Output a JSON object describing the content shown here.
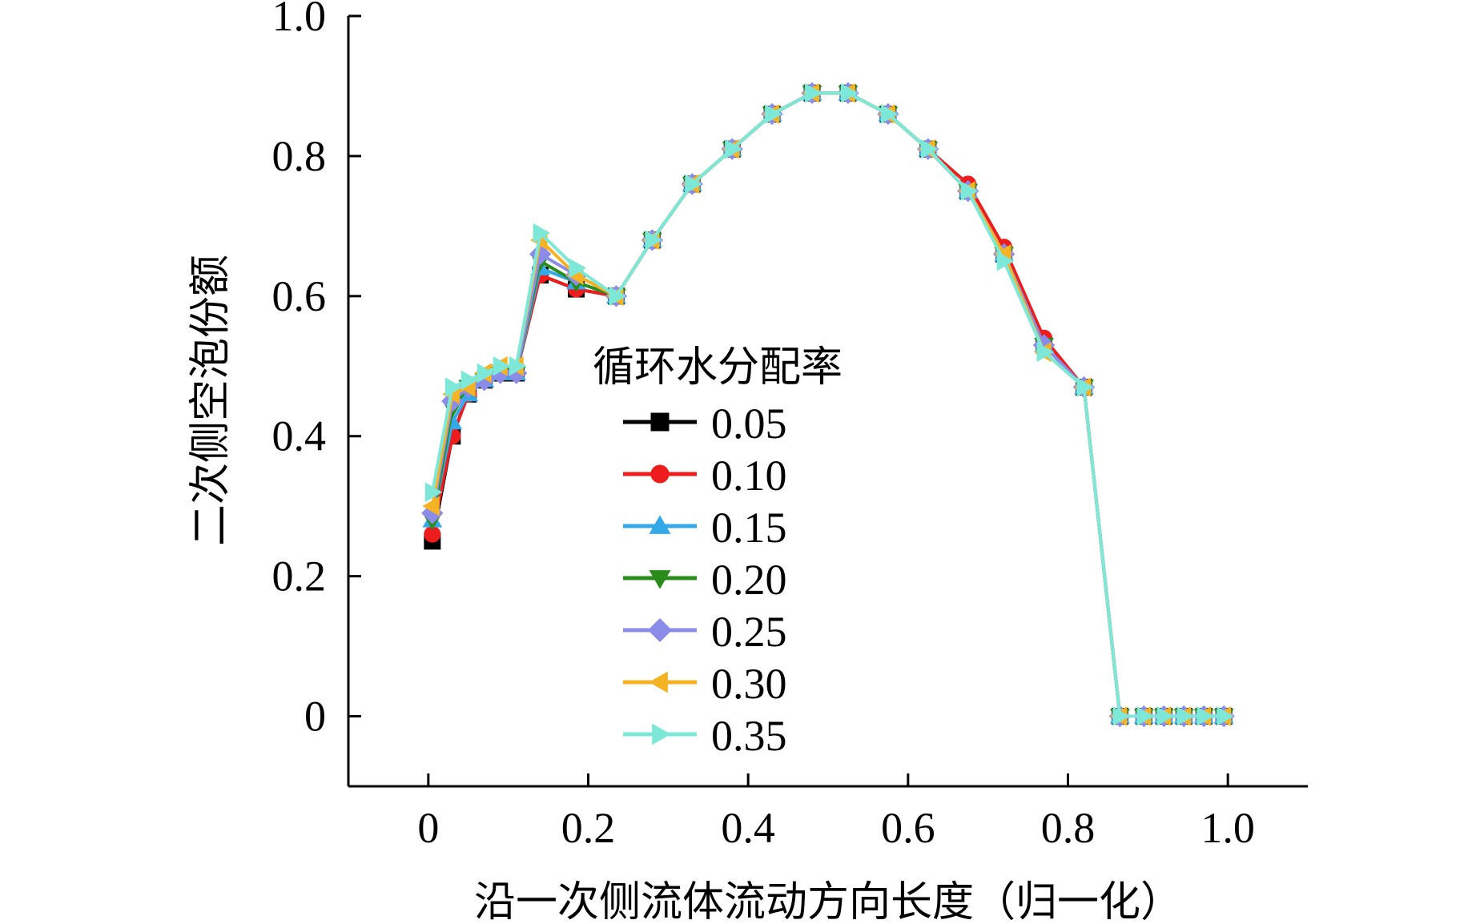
{
  "chart_data": {
    "type": "line",
    "xlabel": "沿一次侧流体流动方向长度（归一化）",
    "ylabel": "二次侧空泡份额",
    "xlim": [
      -0.1,
      1.1
    ],
    "ylim": [
      -0.1,
      1.0
    ],
    "x_ticks": [
      "0",
      "0.2",
      "0.4",
      "0.6",
      "0.8",
      "1.0"
    ],
    "y_ticks": [
      "0",
      "0.2",
      "0.4",
      "0.6",
      "0.8",
      "1.0"
    ],
    "grid": false,
    "legend_position": "center",
    "legend_title": "循环水分配率",
    "x": [
      0.005,
      0.03,
      0.05,
      0.07,
      0.09,
      0.11,
      0.14,
      0.185,
      0.235,
      0.28,
      0.33,
      0.38,
      0.43,
      0.48,
      0.525,
      0.575,
      0.625,
      0.675,
      0.72,
      0.77,
      0.82,
      0.865,
      0.895,
      0.92,
      0.945,
      0.97,
      0.995
    ],
    "series": [
      {
        "name": "0.05",
        "color": "#000000",
        "marker": "square",
        "values": [
          0.25,
          0.4,
          0.46,
          0.48,
          0.49,
          0.49,
          0.63,
          0.61,
          0.6,
          0.68,
          0.76,
          0.81,
          0.86,
          0.89,
          0.89,
          0.86,
          0.81,
          0.75,
          0.66,
          0.53,
          0.47,
          0.0,
          0.0,
          0.0,
          0.0,
          0.0,
          0.0
        ]
      },
      {
        "name": "0.10",
        "color": "#ee1c1c",
        "marker": "circle",
        "values": [
          0.26,
          0.4,
          0.46,
          0.48,
          0.49,
          0.49,
          0.63,
          0.61,
          0.6,
          0.68,
          0.76,
          0.81,
          0.86,
          0.89,
          0.89,
          0.86,
          0.81,
          0.76,
          0.67,
          0.54,
          0.47,
          0.0,
          0.0,
          0.0,
          0.0,
          0.0,
          0.0
        ]
      },
      {
        "name": "0.15",
        "color": "#35a9e8",
        "marker": "triangle-up",
        "values": [
          0.28,
          0.42,
          0.46,
          0.48,
          0.49,
          0.49,
          0.64,
          0.62,
          0.6,
          0.68,
          0.76,
          0.81,
          0.86,
          0.89,
          0.89,
          0.86,
          0.81,
          0.75,
          0.66,
          0.53,
          0.47,
          0.0,
          0.0,
          0.0,
          0.0,
          0.0,
          0.0
        ]
      },
      {
        "name": "0.20",
        "color": "#2a8c1a",
        "marker": "triangle-down",
        "values": [
          0.28,
          0.44,
          0.47,
          0.48,
          0.49,
          0.49,
          0.65,
          0.62,
          0.6,
          0.68,
          0.76,
          0.81,
          0.86,
          0.89,
          0.89,
          0.86,
          0.81,
          0.75,
          0.66,
          0.53,
          0.47,
          0.0,
          0.0,
          0.0,
          0.0,
          0.0,
          0.0
        ]
      },
      {
        "name": "0.25",
        "color": "#8a8ce8",
        "marker": "diamond",
        "values": [
          0.29,
          0.45,
          0.47,
          0.48,
          0.49,
          0.49,
          0.66,
          0.63,
          0.6,
          0.68,
          0.76,
          0.81,
          0.86,
          0.89,
          0.89,
          0.86,
          0.81,
          0.75,
          0.66,
          0.53,
          0.47,
          0.0,
          0.0,
          0.0,
          0.0,
          0.0,
          0.0
        ]
      },
      {
        "name": "0.30",
        "color": "#f5b324",
        "marker": "triangle-left",
        "values": [
          0.3,
          0.46,
          0.47,
          0.49,
          0.5,
          0.5,
          0.68,
          0.63,
          0.6,
          0.68,
          0.76,
          0.81,
          0.86,
          0.89,
          0.89,
          0.86,
          0.81,
          0.75,
          0.66,
          0.52,
          0.47,
          0.0,
          0.0,
          0.0,
          0.0,
          0.0,
          0.0
        ]
      },
      {
        "name": "0.35",
        "color": "#7ee8d8",
        "marker": "triangle-right",
        "values": [
          0.32,
          0.47,
          0.48,
          0.49,
          0.5,
          0.5,
          0.69,
          0.64,
          0.6,
          0.68,
          0.76,
          0.81,
          0.86,
          0.89,
          0.89,
          0.86,
          0.81,
          0.75,
          0.65,
          0.52,
          0.47,
          0.0,
          0.0,
          0.0,
          0.0,
          0.0,
          0.0
        ]
      }
    ]
  }
}
